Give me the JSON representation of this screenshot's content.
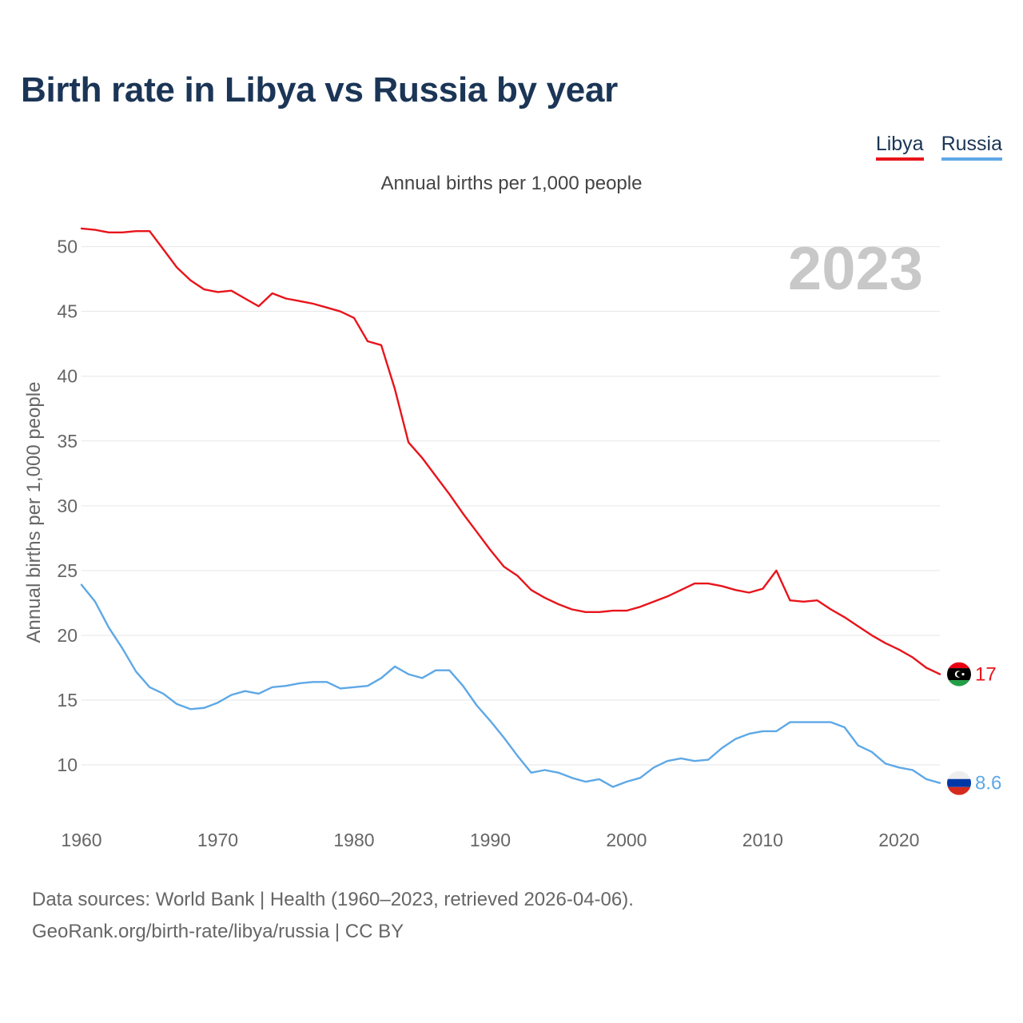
{
  "header": {
    "title": "Birth rate in Libya vs Russia by year",
    "subtitle": "Annual births per 1,000 people"
  },
  "legend": {
    "libya_label": "Libya",
    "russia_label": "Russia"
  },
  "footer": {
    "line1": "Data sources: World Bank | Health (1960–2023, retrieved 2026-04-06).",
    "line2": "GeoRank.org/birth-rate/libya/russia | CC BY"
  },
  "colors": {
    "libya": "#e8141b",
    "russia": "#5ea8e6",
    "grid": "#e6e6e6",
    "axis_text": "#666666",
    "year_watermark": "#c8c8c8"
  },
  "chart_data": {
    "type": "line",
    "title": "Birth rate in Libya vs Russia by year",
    "ylabel": "Annual births per 1,000 people",
    "xlabel": "",
    "year_label": "2023",
    "xlim": [
      1960,
      2023
    ],
    "ylim": [
      5.5,
      53
    ],
    "yticks": [
      10,
      15,
      20,
      25,
      30,
      35,
      40,
      45,
      50
    ],
    "xticks": [
      1960,
      1970,
      1980,
      1990,
      2000,
      2010,
      2020
    ],
    "grid": true,
    "x": [
      1960,
      1961,
      1962,
      1963,
      1964,
      1965,
      1966,
      1967,
      1968,
      1969,
      1970,
      1971,
      1972,
      1973,
      1974,
      1975,
      1976,
      1977,
      1978,
      1979,
      1980,
      1981,
      1982,
      1983,
      1984,
      1985,
      1986,
      1987,
      1988,
      1989,
      1990,
      1991,
      1992,
      1993,
      1994,
      1995,
      1996,
      1997,
      1998,
      1999,
      2000,
      2001,
      2002,
      2003,
      2004,
      2005,
      2006,
      2007,
      2008,
      2009,
      2010,
      2011,
      2012,
      2013,
      2014,
      2015,
      2016,
      2017,
      2018,
      2019,
      2020,
      2021,
      2022,
      2023
    ],
    "series": [
      {
        "name": "Libya",
        "end_label": "17",
        "values": [
          51.4,
          51.3,
          51.1,
          51.1,
          51.2,
          51.2,
          49.8,
          48.4,
          47.4,
          46.7,
          46.5,
          46.6,
          46.0,
          45.4,
          46.4,
          46.0,
          45.8,
          45.6,
          45.3,
          45.0,
          44.5,
          42.7,
          42.4,
          39.0,
          34.9,
          33.7,
          32.3,
          30.9,
          29.4,
          28.0,
          26.6,
          25.3,
          24.6,
          23.5,
          22.9,
          22.4,
          22.0,
          21.8,
          21.8,
          21.9,
          21.9,
          22.2,
          22.6,
          23.0,
          23.5,
          24.0,
          24.0,
          23.8,
          23.5,
          23.3,
          23.6,
          25.0,
          22.7,
          22.6,
          22.7,
          22.0,
          21.4,
          20.7,
          20.0,
          19.4,
          18.9,
          18.3,
          17.5,
          17.0
        ]
      },
      {
        "name": "Russia",
        "end_label": "8.6",
        "values": [
          23.9,
          22.6,
          20.6,
          19.0,
          17.2,
          16.0,
          15.5,
          14.7,
          14.3,
          14.4,
          14.8,
          15.4,
          15.7,
          15.5,
          16.0,
          16.1,
          16.3,
          16.4,
          16.4,
          15.9,
          16.0,
          16.1,
          16.7,
          17.6,
          17.0,
          16.7,
          17.3,
          17.3,
          16.1,
          14.6,
          13.4,
          12.1,
          10.7,
          9.4,
          9.6,
          9.4,
          9.0,
          8.7,
          8.9,
          8.3,
          8.7,
          9.0,
          9.8,
          10.3,
          10.5,
          10.3,
          10.4,
          11.3,
          12.0,
          12.4,
          12.6,
          12.6,
          13.3,
          13.3,
          13.3,
          13.3,
          12.9,
          11.5,
          11.0,
          10.1,
          9.8,
          9.6,
          8.9,
          8.6
        ]
      }
    ]
  }
}
